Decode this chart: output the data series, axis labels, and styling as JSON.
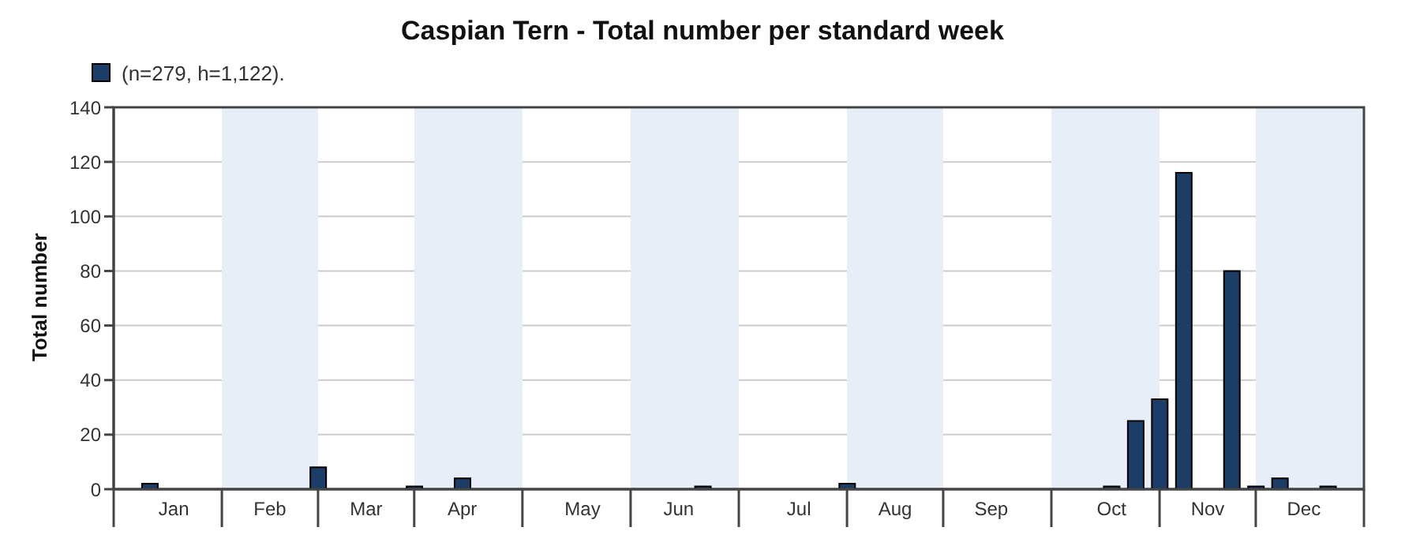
{
  "chart_data": {
    "type": "bar",
    "title": "Caspian Tern - Total number per standard week",
    "ylabel": "Total number",
    "categories": [
      null,
      null,
      "Jan",
      null,
      null,
      null,
      "Feb",
      null,
      null,
      null,
      "Mar",
      null,
      null,
      null,
      "Apr",
      null,
      null,
      null,
      null,
      "May",
      null,
      null,
      null,
      "Jun",
      null,
      null,
      null,
      null,
      "Jul",
      null,
      null,
      null,
      "Aug",
      null,
      null,
      null,
      "Sep",
      null,
      null,
      null,
      null,
      "Oct",
      null,
      null,
      null,
      "Nov",
      null,
      null,
      null,
      "Dec",
      null,
      null
    ],
    "series": [
      {
        "name": "(n=279, h=1,122).",
        "color": "#1b3d66",
        "values": [
          0,
          2,
          0,
          0,
          0,
          0,
          0,
          0,
          8,
          0,
          0,
          0,
          1,
          0,
          4,
          0,
          0,
          0,
          0,
          0,
          0,
          0,
          0,
          0,
          1,
          0,
          0,
          0,
          0,
          0,
          2,
          0,
          0,
          0,
          0,
          0,
          0,
          0,
          0,
          0,
          0,
          1,
          25,
          33,
          116,
          0,
          80,
          1,
          4,
          0,
          1,
          0
        ]
      }
    ],
    "ylim": [
      0,
      140
    ],
    "yticks": [
      0,
      20,
      40,
      60,
      80,
      100,
      120,
      140
    ],
    "grid": "y",
    "legend": "top left"
  }
}
